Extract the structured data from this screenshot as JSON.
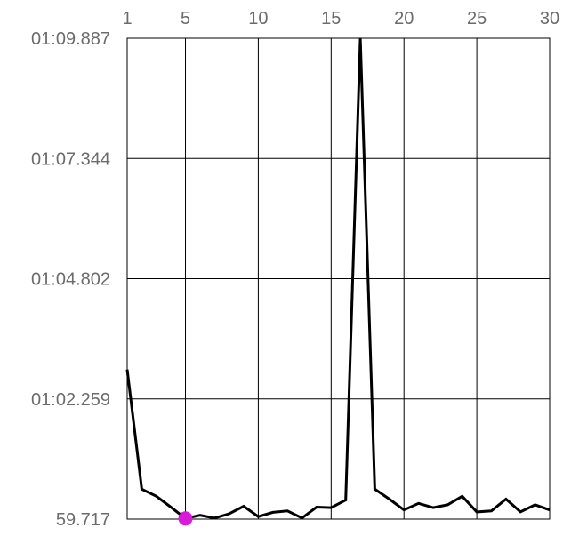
{
  "chart_data": {
    "type": "line",
    "x_tick_labels": [
      "1",
      "5",
      "10",
      "15",
      "20",
      "25",
      "30"
    ],
    "x_ticks": [
      1,
      5,
      10,
      15,
      20,
      25,
      30
    ],
    "xlim": [
      1,
      30
    ],
    "y_tick_labels": [
      "01:09.887",
      "01:07.344",
      "01:04.802",
      "01:02.259",
      "59.717"
    ],
    "y_ticks": [
      69.887,
      67.344,
      64.802,
      62.259,
      59.717
    ],
    "ylim": [
      59.717,
      69.887
    ],
    "grid": true,
    "series": [
      {
        "values": [
          62.88,
          60.35,
          60.2,
          59.97,
          59.73,
          59.8,
          59.74,
          59.83,
          59.99,
          59.77,
          59.86,
          59.89,
          59.74,
          59.97,
          59.96,
          60.12,
          69.887,
          60.35,
          60.14,
          59.91,
          60.05,
          59.96,
          60.02,
          60.2,
          59.87,
          59.89,
          60.14,
          59.87,
          60.02,
          59.91
        ],
        "color": "#000000"
      }
    ],
    "highlight_point": {
      "x": 5,
      "y": 59.73,
      "color": "#d81bd8"
    }
  }
}
